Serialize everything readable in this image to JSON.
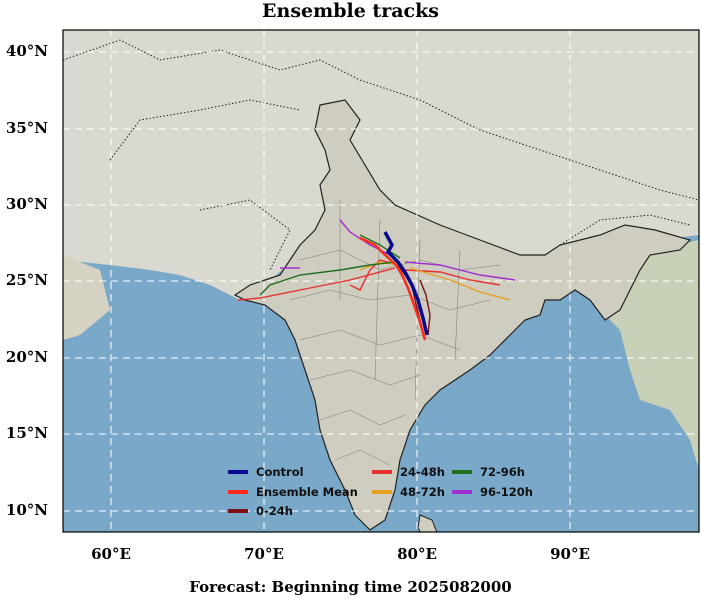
{
  "title": "Ensemble tracks",
  "footer": "Forecast: Beginning time 2025082000",
  "yticks": [
    "40°N",
    "35°N",
    "30°N",
    "25°N",
    "20°N",
    "15°N",
    "10°N"
  ],
  "xticks": [
    "60°E",
    "70°E",
    "80°E",
    "90°E"
  ],
  "legend": [
    {
      "label": "Control",
      "color": "#0a0a8c"
    },
    {
      "label": "Ensemble Mean",
      "color": "#ff2a1a"
    },
    {
      "label": "0-24h",
      "color": "#7a1010"
    },
    {
      "label": "24-48h",
      "color": "#e83030"
    },
    {
      "label": "48-72h",
      "color": "#e8a020"
    },
    {
      "label": "72-96h",
      "color": "#1f6e1f"
    },
    {
      "label": "96-120h",
      "color": "#a030d0"
    }
  ],
  "colors": {
    "ocean": "#7aa8c8",
    "land": "#dcdcd0",
    "india_land": "#cfcdbf",
    "grid": "#ffffff"
  }
}
